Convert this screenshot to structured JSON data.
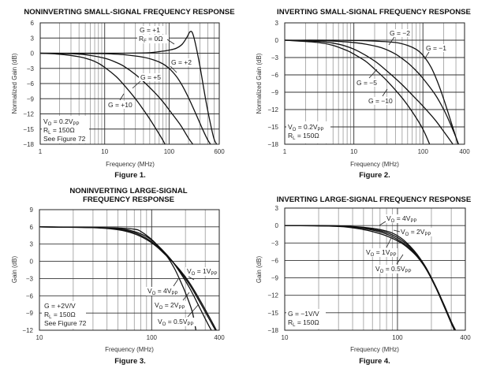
{
  "chart_data": [
    {
      "type": "line",
      "title": "NONINVERTING SMALL-SIGNAL FREQUENCY RESPONSE",
      "figure_label": "Figure 1.",
      "xlabel": "Frequency (MHz)",
      "ylabel": "Normalized Gain (dB)",
      "xscale": "log",
      "xlim": [
        1,
        600
      ],
      "ylim": [
        -18,
        6
      ],
      "xticks": [
        "1",
        "10",
        "100",
        "600"
      ],
      "yticks": [
        "6",
        "3",
        "0",
        "−3",
        "−6",
        "−9",
        "−12",
        "−15",
        "−18"
      ],
      "grid": true,
      "conditions": [
        "V<sub>O</sub> = 0.2V<sub>PP</sub>",
        "R<sub>L</sub> = 150Ω",
        "See Figure 72"
      ],
      "conditions_text": [
        "VO = 0.2VPP",
        "RL = 150Ω",
        "See Figure 72"
      ],
      "series": [
        {
          "name": "G = +1, RF = 0Ω",
          "labels": [
            "G = +1",
            "RF = 0Ω"
          ],
          "x": [
            1,
            5,
            20,
            50,
            80,
            100,
            130,
            160,
            190,
            210,
            230,
            260,
            300,
            350,
            400,
            500,
            600
          ],
          "y": [
            0,
            0,
            0,
            0.1,
            0.4,
            0.6,
            1.0,
            1.8,
            3.2,
            4.2,
            4.0,
            1.5,
            -2.5,
            -7.5,
            -11.5,
            -17,
            -18.5
          ]
        },
        {
          "name": "G = +2",
          "labels": [
            "G = +2"
          ],
          "x": [
            1,
            5,
            10,
            20,
            40,
            60,
            80,
            100,
            130,
            160,
            200,
            260,
            330,
            400,
            470
          ],
          "y": [
            0,
            -0.05,
            -0.1,
            -0.3,
            -0.8,
            -1.4,
            -2.1,
            -3.0,
            -4.6,
            -6.4,
            -8.8,
            -12,
            -15,
            -17.2,
            -18.5
          ]
        },
        {
          "name": "G = +5",
          "labels": [
            "G = +5"
          ],
          "x": [
            1,
            3,
            5,
            10,
            15,
            20,
            30,
            40,
            60,
            80,
            100,
            150,
            200,
            250
          ],
          "y": [
            0,
            -0.1,
            -0.3,
            -1.0,
            -1.8,
            -2.6,
            -4.2,
            -5.6,
            -7.8,
            -9.6,
            -11.2,
            -14.2,
            -16.8,
            -18.5
          ]
        },
        {
          "name": "G = +10",
          "labels": [
            "G = +10"
          ],
          "x": [
            1,
            2,
            4,
            6,
            8,
            10,
            15,
            20,
            30,
            40,
            50,
            60,
            80,
            90
          ],
          "y": [
            0,
            -0.2,
            -0.7,
            -1.3,
            -2.0,
            -2.8,
            -4.6,
            -6.3,
            -9.0,
            -11.2,
            -13.0,
            -14.6,
            -17.2,
            -18.5
          ]
        }
      ]
    },
    {
      "type": "line",
      "title": "INVERTING SMALL-SIGNAL FREQUENCY RESPONSE",
      "figure_label": "Figure 2.",
      "xlabel": "Frequency (MHz)",
      "ylabel": "Normalized Gain (dB)",
      "xscale": "log",
      "xlim": [
        1,
        400
      ],
      "ylim": [
        -18,
        3
      ],
      "xticks": [
        "1",
        "10",
        "100",
        "400"
      ],
      "yticks": [
        "3",
        "0",
        "−3",
        "−6",
        "−9",
        "−12",
        "−15",
        "−18"
      ],
      "grid": true,
      "conditions_text": [
        "VO = 0.2VPP",
        "RL = 150Ω"
      ],
      "series": [
        {
          "name": "G = −1",
          "labels": [
            "G = −1"
          ],
          "x": [
            1,
            5,
            10,
            20,
            40,
            60,
            80,
            100,
            130,
            160,
            200,
            250,
            300,
            330
          ],
          "y": [
            0,
            0,
            -0.05,
            -0.15,
            -0.4,
            -0.9,
            -1.6,
            -2.6,
            -4.6,
            -7.0,
            -10.2,
            -13.8,
            -16.8,
            -18.5
          ]
        },
        {
          "name": "G = −2",
          "labels": [
            "G = −2"
          ],
          "x": [
            1,
            4,
            8,
            15,
            25,
            40,
            60,
            80,
            100,
            150,
            200,
            250,
            300,
            340
          ],
          "y": [
            0,
            -0.1,
            -0.3,
            -0.7,
            -1.3,
            -2.4,
            -3.9,
            -5.3,
            -6.6,
            -9.4,
            -12,
            -14.5,
            -16.8,
            -18.5
          ]
        },
        {
          "name": "G = −5",
          "labels": [
            "G = −5"
          ],
          "x": [
            1,
            3,
            5,
            8,
            12,
            20,
            30,
            50,
            80,
            100,
            150,
            200,
            250,
            290
          ],
          "y": [
            0,
            -0.2,
            -0.5,
            -1.1,
            -2.0,
            -3.6,
            -5.3,
            -7.7,
            -10.2,
            -11.4,
            -13.8,
            -15.8,
            -17.4,
            -18.5
          ]
        },
        {
          "name": "G = −10",
          "labels": [
            "G = −10"
          ],
          "x": [
            1,
            3,
            5,
            8,
            10,
            15,
            20,
            30,
            50,
            70,
            100,
            130
          ],
          "y": [
            0,
            -0.4,
            -0.9,
            -1.8,
            -2.4,
            -3.7,
            -5.0,
            -7.0,
            -10.0,
            -12.4,
            -15.4,
            -18.5
          ]
        }
      ]
    },
    {
      "type": "line",
      "title": "NONINVERTING LARGE-SIGNAL",
      "title_line2": "FREQUENCY RESPONSE",
      "figure_label": "Figure 3.",
      "xlabel": "Frequency (MHz)",
      "ylabel": "Gain (dB)",
      "xscale": "log",
      "xlim": [
        10,
        400
      ],
      "ylim": [
        -12,
        9
      ],
      "xticks": [
        "10",
        "100",
        "400"
      ],
      "yticks": [
        "9",
        "6",
        "3",
        "0",
        "−3",
        "−6",
        "−9",
        "−12"
      ],
      "grid": true,
      "conditions_text": [
        "G = +2V/V",
        "RL = 150Ω",
        "See Figure 72"
      ],
      "series": [
        {
          "name": "VO = 1VPP",
          "labels": [
            "VO = 1VPP"
          ],
          "x": [
            10,
            30,
            50,
            70,
            90,
            110,
            130,
            150,
            180,
            220,
            270,
            320,
            370,
            400
          ],
          "y": [
            6,
            5.9,
            5.6,
            5.0,
            4.0,
            2.8,
            1.4,
            0.2,
            -1.8,
            -4.2,
            -7.2,
            -9.8,
            -12,
            -13
          ]
        },
        {
          "name": "VO = 4VPP",
          "labels": [
            "VO = 4VPP"
          ],
          "x": [
            10,
            30,
            50,
            70,
            80,
            100,
            120,
            140,
            160,
            180,
            200,
            230,
            250
          ],
          "y": [
            6,
            5.9,
            5.8,
            5.6,
            5.2,
            3.8,
            2.2,
            0.6,
            -1.3,
            -3.4,
            -5.5,
            -8.8,
            -12.5
          ]
        },
        {
          "name": "VO = 2VPP",
          "labels": [
            "VO = 2VPP"
          ],
          "x": [
            10,
            30,
            50,
            70,
            90,
            110,
            130,
            150,
            180,
            220,
            260,
            300,
            340,
            370
          ],
          "y": [
            6,
            5.9,
            5.7,
            5.2,
            4.3,
            3.0,
            1.6,
            0.2,
            -2.0,
            -4.8,
            -7.6,
            -10.0,
            -12,
            -13
          ]
        },
        {
          "name": "VO = 0.5VPP",
          "labels": [
            "VO = 0.5VPP"
          ],
          "x": [
            10,
            30,
            50,
            70,
            90,
            110,
            130,
            150,
            180,
            220,
            270,
            320,
            370,
            400
          ],
          "y": [
            6,
            5.85,
            5.5,
            4.8,
            3.8,
            2.6,
            1.3,
            0.1,
            -1.6,
            -3.9,
            -6.8,
            -9.4,
            -11.7,
            -13
          ]
        }
      ]
    },
    {
      "type": "line",
      "title": "INVERTING LARGE-SIGNAL FREQUENCY RESPONSE",
      "figure_label": "Figure 4.",
      "xlabel": "Frequency (MHz)",
      "ylabel": "Gain (dB)",
      "xscale": "log",
      "xlim": [
        10,
        400
      ],
      "ylim": [
        -18,
        3
      ],
      "xticks": [
        "10",
        "100",
        "400"
      ],
      "yticks": [
        "3",
        "0",
        "−3",
        "−6",
        "−9",
        "−12",
        "−15",
        "−18"
      ],
      "grid": true,
      "conditions_text": [
        "G = −1V/V",
        "RL = 150Ω"
      ],
      "series": [
        {
          "name": "VO = 4VPP",
          "labels": [
            "VO = 4VPP"
          ],
          "x": [
            10,
            30,
            50,
            70,
            90,
            110,
            130,
            150,
            180,
            220,
            260,
            300,
            330
          ],
          "y": [
            0,
            -0.05,
            -0.3,
            -0.7,
            -1.3,
            -2.3,
            -3.6,
            -5.0,
            -7.3,
            -10.6,
            -13.8,
            -16.6,
            -18.6
          ]
        },
        {
          "name": "VO = 2VPP",
          "labels": [
            "VO = 2VPP"
          ],
          "x": [
            10,
            30,
            50,
            70,
            90,
            110,
            130,
            150,
            180,
            220,
            260,
            300,
            330
          ],
          "y": [
            0,
            -0.08,
            -0.4,
            -0.9,
            -1.6,
            -2.6,
            -3.8,
            -5.2,
            -7.5,
            -10.8,
            -14.0,
            -16.8,
            -18.6
          ]
        },
        {
          "name": "VO = 1VPP",
          "labels": [
            "VO = 1VPP"
          ],
          "x": [
            10,
            30,
            50,
            70,
            90,
            110,
            130,
            150,
            180,
            220,
            260,
            300,
            335
          ],
          "y": [
            0,
            -0.1,
            -0.5,
            -1.1,
            -1.9,
            -2.9,
            -4.0,
            -5.3,
            -7.5,
            -10.7,
            -13.9,
            -16.7,
            -18.6
          ]
        },
        {
          "name": "VO = 0.5VPP",
          "labels": [
            "VO = 0.5VPP"
          ],
          "x": [
            10,
            30,
            50,
            70,
            90,
            110,
            130,
            150,
            180,
            220,
            260,
            300,
            340
          ],
          "y": [
            0,
            -0.15,
            -0.7,
            -1.4,
            -2.2,
            -3.1,
            -4.2,
            -5.4,
            -7.5,
            -10.6,
            -13.7,
            -16.5,
            -18.6
          ]
        }
      ]
    }
  ]
}
